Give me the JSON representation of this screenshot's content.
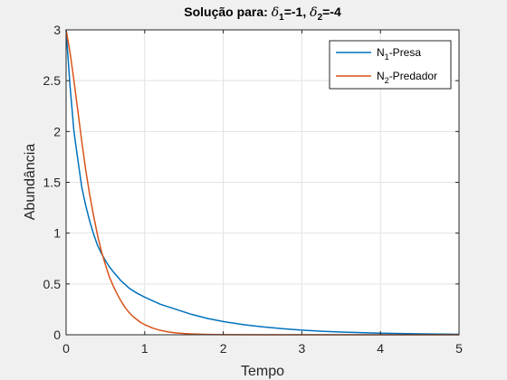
{
  "chart_data": {
    "type": "line",
    "title": {
      "prefix": "Solução para: ",
      "d1_symbol": "δ",
      "d1_sub": "1",
      "d1_value": "=-1, ",
      "d2_symbol": "δ",
      "d2_sub": "2",
      "d2_value": "=-4"
    },
    "xlabel": "Tempo",
    "ylabel": "Abundância",
    "xlim": [
      0,
      5
    ],
    "ylim": [
      0,
      3
    ],
    "xticks": [
      0,
      1,
      2,
      3,
      4,
      5
    ],
    "yticks": [
      0,
      0.5,
      1,
      1.5,
      2,
      2.5,
      3
    ],
    "xtick_labels": [
      "0",
      "1",
      "2",
      "3",
      "4",
      "5"
    ],
    "ytick_labels": [
      "0",
      "0.5",
      "1",
      "1.5",
      "2",
      "2.5",
      "3"
    ],
    "grid": true,
    "legend_position": "top-right",
    "series": [
      {
        "legend": {
          "base": "N",
          "sub": "1",
          "rest": "-Presa"
        },
        "color": "#0072BD",
        "x": [
          0,
          0.05,
          0.1,
          0.15,
          0.2,
          0.25,
          0.3,
          0.35,
          0.4,
          0.45,
          0.5,
          0.55,
          0.6,
          0.7,
          0.8,
          0.9,
          1.0,
          1.2,
          1.4,
          1.6,
          1.8,
          2.0,
          2.25,
          2.5,
          2.75,
          3.0,
          3.25,
          3.5,
          3.75,
          4.0,
          4.25,
          4.5,
          4.75,
          5.0
        ],
        "y": [
          3.0,
          2.45,
          2.0,
          1.72,
          1.45,
          1.27,
          1.12,
          0.99,
          0.88,
          0.8,
          0.73,
          0.67,
          0.62,
          0.53,
          0.46,
          0.41,
          0.37,
          0.3,
          0.25,
          0.2,
          0.16,
          0.13,
          0.1,
          0.078,
          0.06,
          0.046,
          0.035,
          0.027,
          0.021,
          0.016,
          0.012,
          0.009,
          0.007,
          0.005
        ]
      },
      {
        "legend": {
          "base": "N",
          "sub": "2",
          "rest": "-Predador"
        },
        "color": "#D95319",
        "x": [
          0,
          0.05,
          0.1,
          0.15,
          0.2,
          0.25,
          0.3,
          0.35,
          0.4,
          0.45,
          0.5,
          0.55,
          0.6,
          0.65,
          0.7,
          0.75,
          0.8,
          0.85,
          0.9,
          0.95,
          1.0,
          1.1,
          1.2,
          1.3,
          1.4,
          1.5,
          1.6,
          1.8,
          2.0,
          2.5,
          3.0,
          4.0,
          5.0
        ],
        "y": [
          3.0,
          2.78,
          2.5,
          2.2,
          1.9,
          1.62,
          1.38,
          1.17,
          0.98,
          0.82,
          0.69,
          0.57,
          0.48,
          0.4,
          0.33,
          0.27,
          0.22,
          0.18,
          0.15,
          0.12,
          0.1,
          0.066,
          0.043,
          0.028,
          0.018,
          0.012,
          0.008,
          0.003,
          0.001,
          0.0,
          0.0,
          0.0,
          0.0
        ]
      }
    ]
  }
}
